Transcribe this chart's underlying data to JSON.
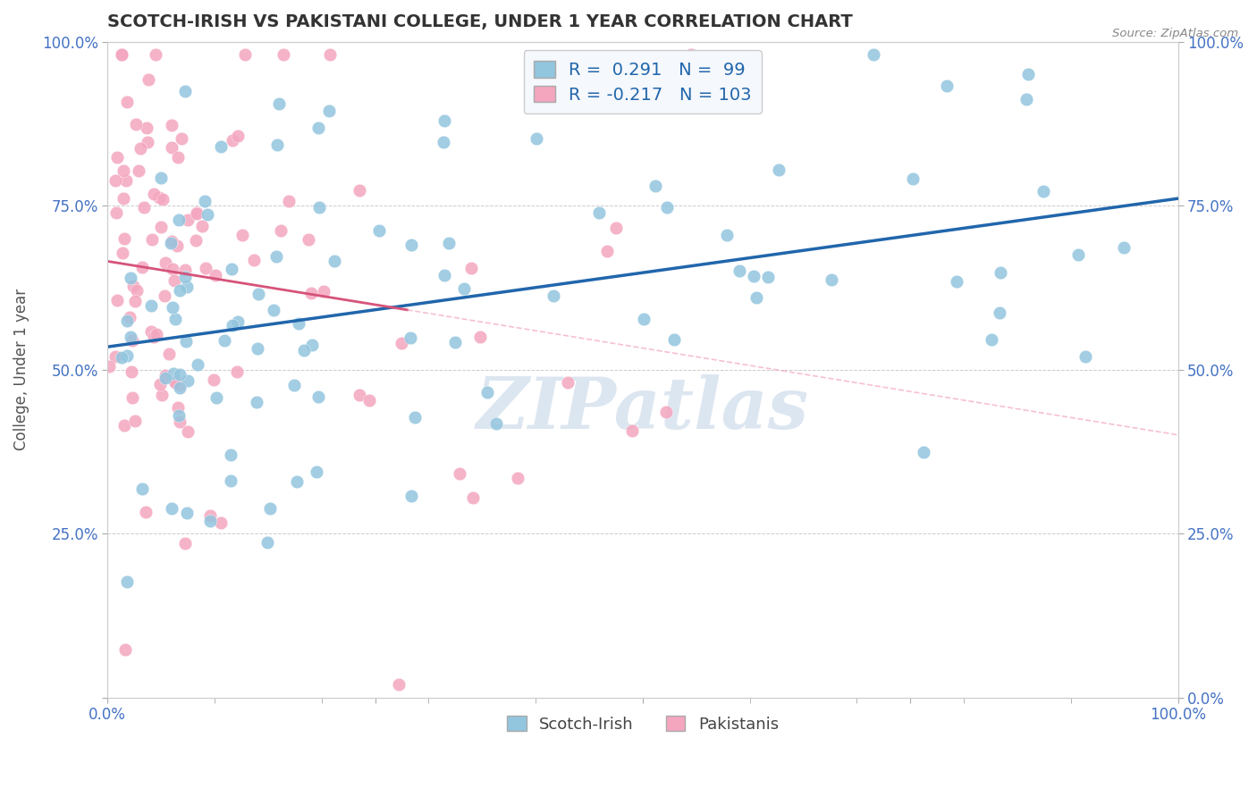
{
  "title": "SCOTCH-IRISH VS PAKISTANI COLLEGE, UNDER 1 YEAR CORRELATION CHART",
  "source_text": "Source: ZipAtlas.com",
  "ylabel": "College, Under 1 year",
  "scotch_irish_R": 0.291,
  "pakistani_R": -0.217,
  "scotch_irish_N": 99,
  "pakistani_N": 103,
  "blue_color": "#92c5de",
  "pink_color": "#f4a6bf",
  "blue_line_color": "#2166ac",
  "pink_line_color": "#d6537a",
  "pink_dash_color": "#f4a6bf",
  "background_color": "#ffffff",
  "grid_color": "#cccccc",
  "watermark_text": "ZIPatlas",
  "watermark_color": "#dce6f0",
  "title_color": "#333333",
  "tick_label_color": "#4472c4",
  "legend_blue_label": "R =  0.291   N =  99",
  "legend_pink_label": "R = -0.217   N = 103"
}
